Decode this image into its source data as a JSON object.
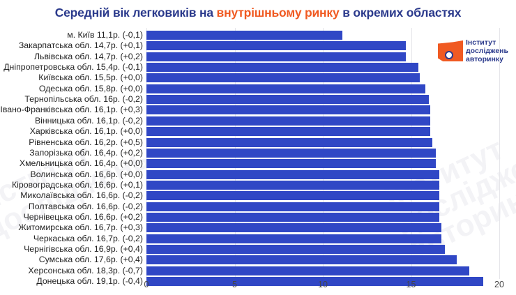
{
  "title": {
    "part1": "Середній вік легковиків на ",
    "highlight": "внутрішньому ринку",
    "part2": " в окремих областях"
  },
  "logo": {
    "line1": "Інститут",
    "line2": "досліджень",
    "line3": "авторинку"
  },
  "colors": {
    "bar": "#3047c5",
    "title": "#2b3a8c",
    "accent": "#f05a22"
  },
  "chart_data": {
    "type": "bar",
    "orientation": "horizontal",
    "title": "Середній вік легковиків на внутрішньому ринку в окремих областях",
    "xlabel": "",
    "ylabel": "",
    "xlim": [
      0,
      20
    ],
    "xticks": [
      "0",
      "5",
      "10",
      "15",
      "20"
    ],
    "grid": true,
    "categories": [
      "м. Київ 11,1р. (-0,1)",
      "Закарпатська обл. 14,7р. (+0,1)",
      "Львівська обл. 14,7р. (+0,2)",
      "Дніпропетровська обл. 15,4р. (-0,1)",
      "Київська обл. 15,5р. (+0,0)",
      "Одеська обл. 15,8р. (+0,0)",
      "Тернопільська обл. 16р. (-0,2)",
      "Івано-Франківська обл. 16,1р. (+0,3)",
      "Вінницька обл. 16,1р. (-0,2)",
      "Харківська обл. 16,1р. (+0,0)",
      "Рівненська обл. 16,2р. (+0,5)",
      "Запорізька обл. 16,4р. (+0,2)",
      "Хмельницька обл. 16,4р. (+0,0)",
      "Волинська обл. 16,6р. (+0,0)",
      "Кіровоградська обл. 16,6р. (+0,1)",
      "Миколаївська обл. 16,6р. (-0,2)",
      "Полтавська обл. 16,6р. (-0,2)",
      "Чернівецька обл. 16,6р. (+0,2)",
      "Житомирська обл. 16,7р. (+0,3)",
      "Черкаська обл. 16,7р. (-0,2)",
      "Чернігівська обл. 16,9р. (+0,4)",
      "Сумська обл. 17,6р. (+0,4)",
      "Херсонська обл. 18,3р. (-0,7)",
      "Донецька обл. 19,1р. (-0,4)"
    ],
    "values": [
      11.1,
      14.7,
      14.7,
      15.4,
      15.5,
      15.8,
      16.0,
      16.1,
      16.1,
      16.1,
      16.2,
      16.4,
      16.4,
      16.6,
      16.6,
      16.6,
      16.6,
      16.6,
      16.7,
      16.7,
      16.9,
      17.6,
      18.3,
      19.1
    ],
    "changes": [
      -0.1,
      0.1,
      0.2,
      -0.1,
      0.0,
      0.0,
      -0.2,
      0.3,
      -0.2,
      0.0,
      0.5,
      0.2,
      0.0,
      0.0,
      0.1,
      -0.2,
      -0.2,
      0.2,
      0.3,
      -0.2,
      0.4,
      0.4,
      -0.7,
      -0.4
    ]
  }
}
